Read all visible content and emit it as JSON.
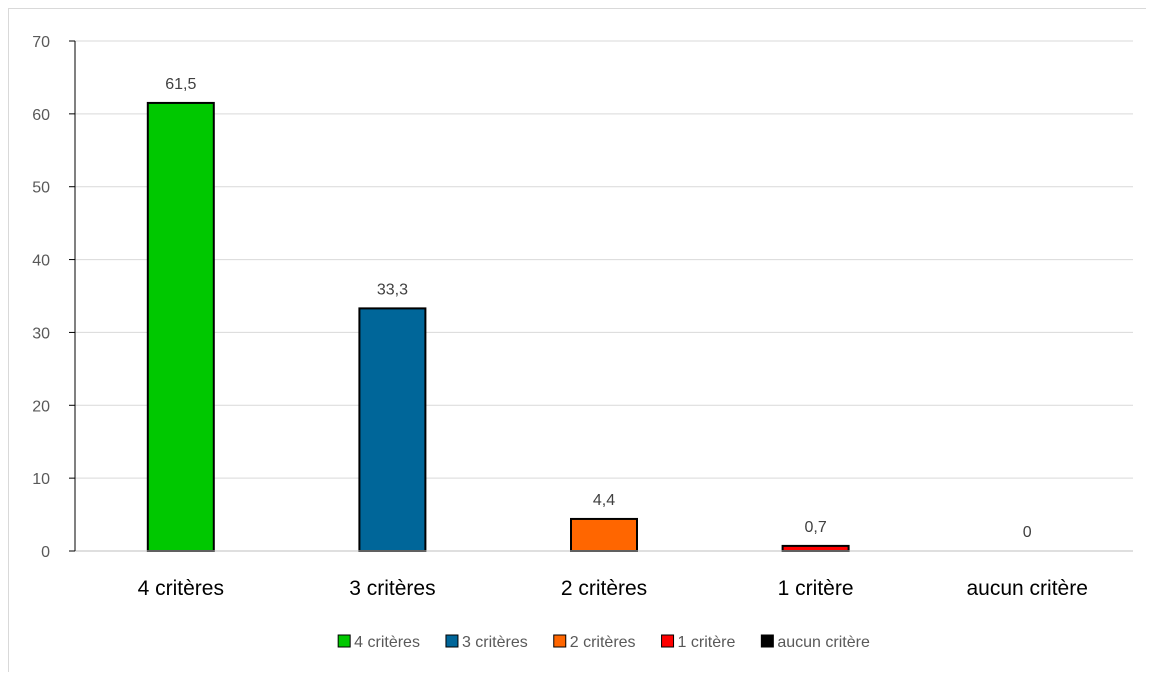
{
  "chart_data": {
    "type": "bar",
    "categories": [
      "4 critères",
      "3 critères",
      "2 critères",
      "1 critère",
      "aucun critère"
    ],
    "values": [
      61.5,
      33.3,
      4.4,
      0.7,
      0
    ],
    "data_labels": [
      "61,5",
      "33,3",
      "4,4",
      "0,7",
      "0"
    ],
    "colors": [
      "#00c800",
      "#006699",
      "#ff6600",
      "#ff0000",
      "#000000"
    ],
    "ylim": [
      0,
      70
    ],
    "yticks": [
      0,
      10,
      20,
      30,
      40,
      50,
      60,
      70
    ],
    "ytick_labels": [
      "0",
      "10",
      "20",
      "30",
      "40",
      "50",
      "60",
      "70"
    ],
    "grid": true,
    "legend_position": "bottom",
    "legend": [
      "4 critères",
      "3 critères",
      "2 critères",
      "1 critère",
      "aucun critère"
    ]
  }
}
